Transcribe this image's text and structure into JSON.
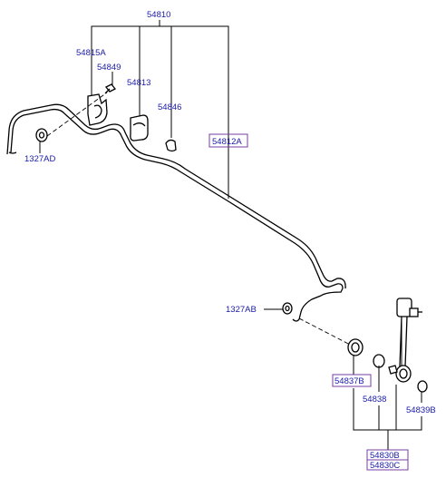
{
  "labels": {
    "assembly": "54810",
    "bracket": "54815A",
    "bolt": "54849",
    "bushing": "54813",
    "clip": "54846",
    "bar": "54812A",
    "nut_left": "1327AD",
    "nut_right": "1327AB",
    "link_bushing": "54837B",
    "link_ring": "54838",
    "link_washer": "54839B",
    "link_assy_1": "54830B",
    "link_assy_2": "54830C"
  },
  "colors": {
    "label_text": "#1a1aa8",
    "label_box": "#7a3fa3",
    "lines": "#000000"
  }
}
